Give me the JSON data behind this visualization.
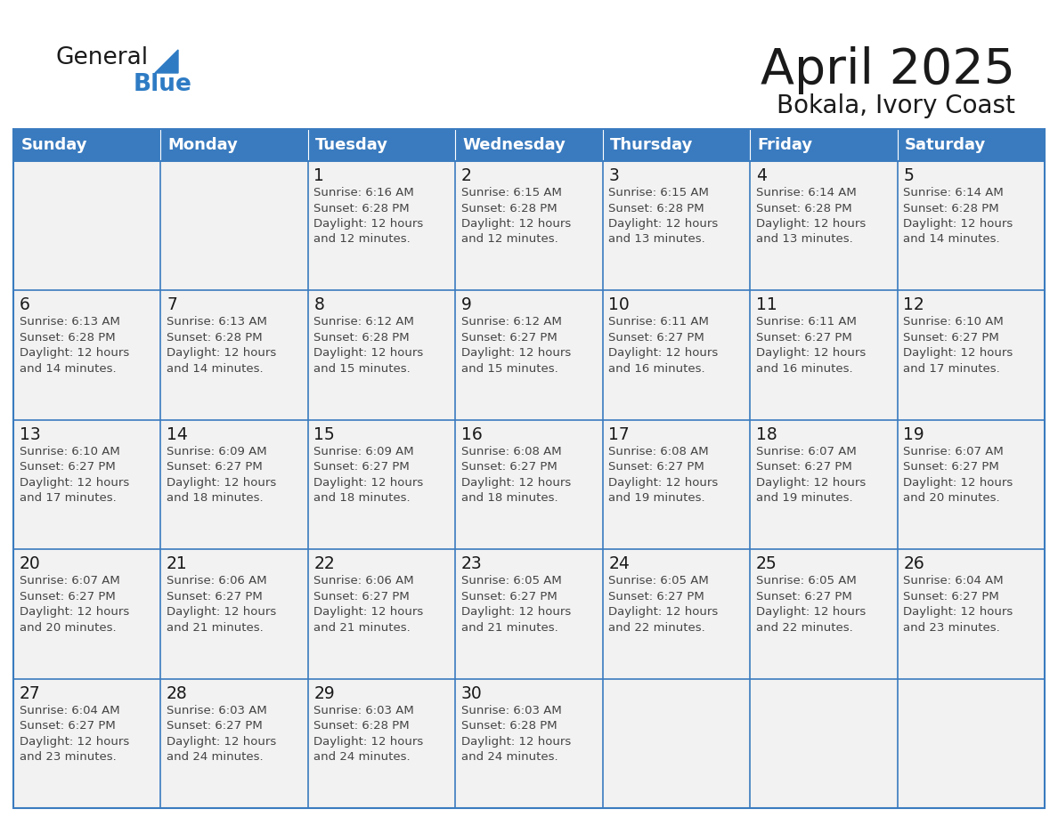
{
  "title": "April 2025",
  "subtitle": "Bokala, Ivory Coast",
  "days_of_week": [
    "Sunday",
    "Monday",
    "Tuesday",
    "Wednesday",
    "Thursday",
    "Friday",
    "Saturday"
  ],
  "header_bg": "#3a7bbf",
  "header_text": "#ffffff",
  "cell_bg": "#f2f2f2",
  "border_color": "#3a7bbf",
  "text_color": "#444444",
  "day_num_color": "#222222",
  "logo_blue": "#2e7bc4",
  "logo_dark": "#1a1a1a",
  "calendar_data": [
    [
      {
        "day": null,
        "sunrise": null,
        "sunset": null,
        "daylight": null
      },
      {
        "day": null,
        "sunrise": null,
        "sunset": null,
        "daylight": null
      },
      {
        "day": 1,
        "sunrise": "6:16 AM",
        "sunset": "6:28 PM",
        "daylight": "12 hours and 12 minutes."
      },
      {
        "day": 2,
        "sunrise": "6:15 AM",
        "sunset": "6:28 PM",
        "daylight": "12 hours and 12 minutes."
      },
      {
        "day": 3,
        "sunrise": "6:15 AM",
        "sunset": "6:28 PM",
        "daylight": "12 hours and 13 minutes."
      },
      {
        "day": 4,
        "sunrise": "6:14 AM",
        "sunset": "6:28 PM",
        "daylight": "12 hours and 13 minutes."
      },
      {
        "day": 5,
        "sunrise": "6:14 AM",
        "sunset": "6:28 PM",
        "daylight": "12 hours and 14 minutes."
      }
    ],
    [
      {
        "day": 6,
        "sunrise": "6:13 AM",
        "sunset": "6:28 PM",
        "daylight": "12 hours and 14 minutes."
      },
      {
        "day": 7,
        "sunrise": "6:13 AM",
        "sunset": "6:28 PM",
        "daylight": "12 hours and 14 minutes."
      },
      {
        "day": 8,
        "sunrise": "6:12 AM",
        "sunset": "6:28 PM",
        "daylight": "12 hours and 15 minutes."
      },
      {
        "day": 9,
        "sunrise": "6:12 AM",
        "sunset": "6:27 PM",
        "daylight": "12 hours and 15 minutes."
      },
      {
        "day": 10,
        "sunrise": "6:11 AM",
        "sunset": "6:27 PM",
        "daylight": "12 hours and 16 minutes."
      },
      {
        "day": 11,
        "sunrise": "6:11 AM",
        "sunset": "6:27 PM",
        "daylight": "12 hours and 16 minutes."
      },
      {
        "day": 12,
        "sunrise": "6:10 AM",
        "sunset": "6:27 PM",
        "daylight": "12 hours and 17 minutes."
      }
    ],
    [
      {
        "day": 13,
        "sunrise": "6:10 AM",
        "sunset": "6:27 PM",
        "daylight": "12 hours and 17 minutes."
      },
      {
        "day": 14,
        "sunrise": "6:09 AM",
        "sunset": "6:27 PM",
        "daylight": "12 hours and 18 minutes."
      },
      {
        "day": 15,
        "sunrise": "6:09 AM",
        "sunset": "6:27 PM",
        "daylight": "12 hours and 18 minutes."
      },
      {
        "day": 16,
        "sunrise": "6:08 AM",
        "sunset": "6:27 PM",
        "daylight": "12 hours and 18 minutes."
      },
      {
        "day": 17,
        "sunrise": "6:08 AM",
        "sunset": "6:27 PM",
        "daylight": "12 hours and 19 minutes."
      },
      {
        "day": 18,
        "sunrise": "6:07 AM",
        "sunset": "6:27 PM",
        "daylight": "12 hours and 19 minutes."
      },
      {
        "day": 19,
        "sunrise": "6:07 AM",
        "sunset": "6:27 PM",
        "daylight": "12 hours and 20 minutes."
      }
    ],
    [
      {
        "day": 20,
        "sunrise": "6:07 AM",
        "sunset": "6:27 PM",
        "daylight": "12 hours and 20 minutes."
      },
      {
        "day": 21,
        "sunrise": "6:06 AM",
        "sunset": "6:27 PM",
        "daylight": "12 hours and 21 minutes."
      },
      {
        "day": 22,
        "sunrise": "6:06 AM",
        "sunset": "6:27 PM",
        "daylight": "12 hours and 21 minutes."
      },
      {
        "day": 23,
        "sunrise": "6:05 AM",
        "sunset": "6:27 PM",
        "daylight": "12 hours and 21 minutes."
      },
      {
        "day": 24,
        "sunrise": "6:05 AM",
        "sunset": "6:27 PM",
        "daylight": "12 hours and 22 minutes."
      },
      {
        "day": 25,
        "sunrise": "6:05 AM",
        "sunset": "6:27 PM",
        "daylight": "12 hours and 22 minutes."
      },
      {
        "day": 26,
        "sunrise": "6:04 AM",
        "sunset": "6:27 PM",
        "daylight": "12 hours and 23 minutes."
      }
    ],
    [
      {
        "day": 27,
        "sunrise": "6:04 AM",
        "sunset": "6:27 PM",
        "daylight": "12 hours and 23 minutes."
      },
      {
        "day": 28,
        "sunrise": "6:03 AM",
        "sunset": "6:27 PM",
        "daylight": "12 hours and 24 minutes."
      },
      {
        "day": 29,
        "sunrise": "6:03 AM",
        "sunset": "6:28 PM",
        "daylight": "12 hours and 24 minutes."
      },
      {
        "day": 30,
        "sunrise": "6:03 AM",
        "sunset": "6:28 PM",
        "daylight": "12 hours and 24 minutes."
      },
      {
        "day": null,
        "sunrise": null,
        "sunset": null,
        "daylight": null
      },
      {
        "day": null,
        "sunrise": null,
        "sunset": null,
        "daylight": null
      },
      {
        "day": null,
        "sunrise": null,
        "sunset": null,
        "daylight": null
      }
    ]
  ]
}
